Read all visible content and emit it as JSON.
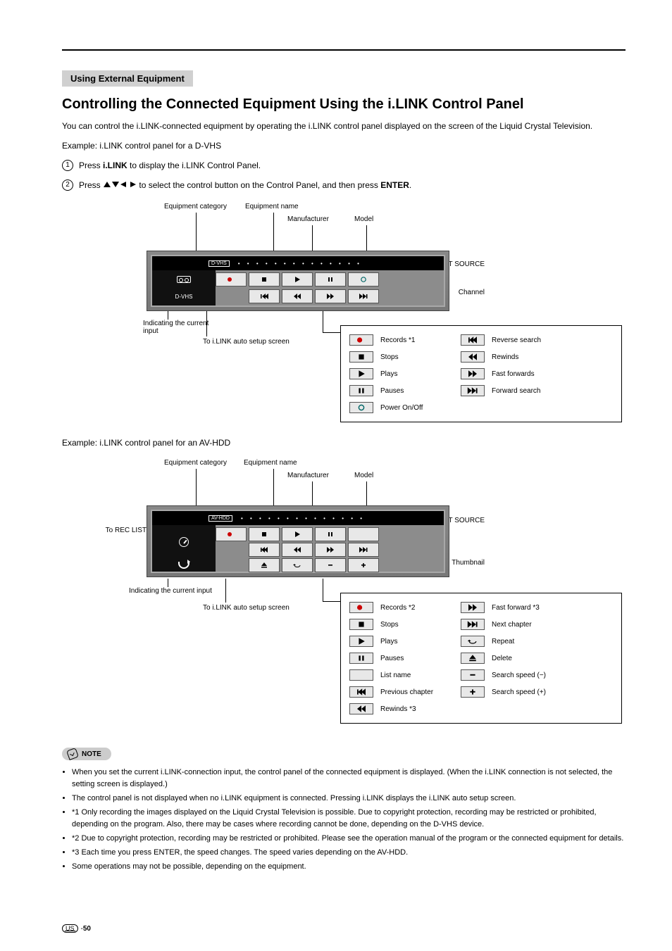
{
  "section_label": "Using External Equipment",
  "title": "Controlling the Connected Equipment Using the i.LINK Control Panel",
  "intro": "You can control the i.LINK-connected equipment by operating the i.LINK control panel displayed on the screen of the Liquid Crystal Television.",
  "example": "Example: i.LINK control panel for a D-VHS",
  "steps": [
    {
      "num": "1",
      "text_before": "Press ",
      "bold1": "i.LINK",
      "text_after": " to display the i.LINK Control Panel."
    },
    {
      "num": "2",
      "text_before": "Press ",
      "arrows": true,
      "text_mid": " to select the control button on the Control Panel, and then press ",
      "bold1": "ENTER",
      "text_after": "."
    }
  ],
  "dvhs": {
    "panel_tag": "D-VHS",
    "panel_text_left": "D-VHS",
    "dots": "• • • • • • •   • • • • • • •",
    "labels": {
      "equip_category": "Equipment category",
      "current_input": "Indicating the current input",
      "equip_name": "Equipment name",
      "manufacturer": "Manufacturer",
      "model": "Model",
      "to_input": "To INPUT SOURCE",
      "channel": "Channel",
      "to_ilink": "To i.LINK auto setup screen"
    },
    "legend": [
      {
        "icon": "rec",
        "label": "Records *1"
      },
      {
        "icon": "stop",
        "label": "Stops"
      },
      {
        "icon": "play",
        "label": "Plays"
      },
      {
        "icon": "pause",
        "label": "Pauses"
      },
      {
        "icon": "power",
        "label": "Power On/Off"
      },
      {
        "icon": "skipb",
        "label": "Reverse search"
      },
      {
        "icon": "rew",
        "label": "Rewinds"
      },
      {
        "icon": "ff",
        "label": "Fast forwards"
      },
      {
        "icon": "skipf",
        "label": "Forward search"
      }
    ]
  },
  "avhdd": {
    "heading": "Example: i.LINK control panel for an AV-HDD",
    "panel_tag": "AV-HDD",
    "labels": {
      "equip_category": "Equipment category",
      "equip_name": "Equipment name",
      "manufacturer": "Manufacturer",
      "model": "Model",
      "to_rec_list": "To REC LIST",
      "current_input": "Indicating the current input",
      "to_input": "To INPUT SOURCE",
      "thumbnail": "Thumbnail",
      "to_ilink": "To i.LINK auto setup screen"
    },
    "legend": [
      {
        "icon": "rec",
        "label": "Records *2"
      },
      {
        "icon": "stop",
        "label": "Stops"
      },
      {
        "icon": "play",
        "label": "Plays"
      },
      {
        "icon": "pause",
        "label": "Pauses"
      },
      {
        "icon": "blank",
        "label": "List name"
      },
      {
        "icon": "skipb",
        "label": "Previous chapter"
      },
      {
        "icon": "rew",
        "label": "Rewinds *3"
      },
      {
        "icon": "ff",
        "label": "Fast forward *3"
      },
      {
        "icon": "skipf",
        "label": "Next chapter"
      },
      {
        "icon": "repeat",
        "label": "Repeat"
      },
      {
        "icon": "eject",
        "label": "Delete"
      },
      {
        "icon": "minus",
        "label": "Search speed (−)"
      },
      {
        "icon": "plus",
        "label": "Search speed (+)"
      }
    ]
  },
  "note_label": "NOTE",
  "notes": [
    "When you set the current i.LINK-connection input, the control panel of the connected equipment is displayed. (When the i.LINK connection is not selected, the setting screen is displayed.)",
    "The control panel is not displayed when no i.LINK equipment is connected. Pressing i.LINK displays the i.LINK auto setup screen.",
    "*1 Only recording the images displayed on the Liquid Crystal Television is possible. Due to copyright protection, recording may be restricted or prohibited, depending on the program. Also, there may be cases where recording cannot be done, depending on the D-VHS device.",
    "*2 Due to copyright protection, recording may be restricted or prohibited. Please see the operation manual of the program or the connected equipment for details.",
    "*3 Each time you press ENTER, the speed changes. The speed varies depending on the AV-HDD.",
    "Some operations may not be possible, depending on the equipment."
  ],
  "page_number": "50",
  "us_label": "US",
  "colors": {
    "section_bg": "#d0d0d0",
    "panel_bg": "#8c8c8c",
    "btn_bg": "#e8e8e8",
    "black": "#000000"
  }
}
